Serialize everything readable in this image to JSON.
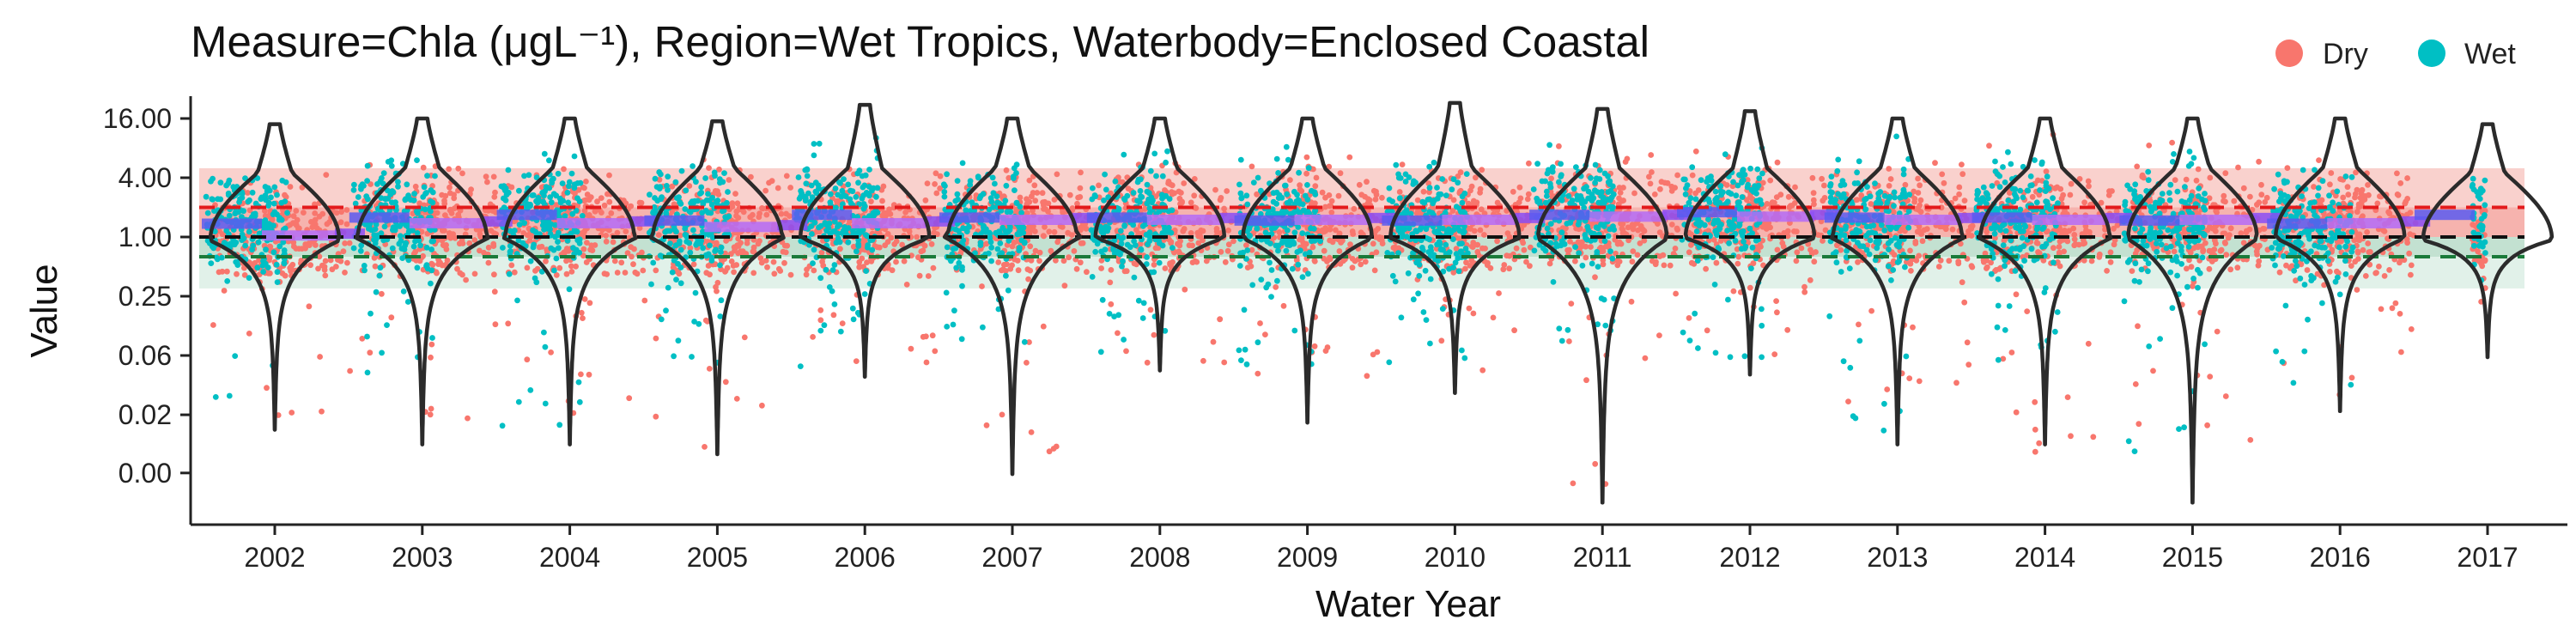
{
  "chart_data": {
    "type": "scatter",
    "subtype": "jittered points with violin overlays and bands, log-scale y axis",
    "title": "Measure=Chla (μgL⁻¹), Region=Wet Tropics, Waterbody=Enclosed Coastal",
    "xlabel": "Water Year",
    "ylabel": "Value",
    "x_scale": "categorical",
    "y_scale": "log2",
    "ylim": [
      0.005,
      30
    ],
    "categories": [
      "2002",
      "2003",
      "2004",
      "2005",
      "2006",
      "2007",
      "2008",
      "2009",
      "2010",
      "2011",
      "2012",
      "2013",
      "2014",
      "2015",
      "2016",
      "2017"
    ],
    "y_ticks": [
      {
        "value": 0.004,
        "label": "0.00"
      },
      {
        "value": 0.0156,
        "label": "0.02"
      },
      {
        "value": 0.0625,
        "label": "0.06"
      },
      {
        "value": 0.25,
        "label": "0.25"
      },
      {
        "value": 1,
        "label": "1.00"
      },
      {
        "value": 4,
        "label": "4.00"
      },
      {
        "value": 16,
        "label": "16.00"
      }
    ],
    "reference_lines": [
      {
        "value": 2.0,
        "color": "#e31a1c",
        "style": "dashed"
      },
      {
        "value": 1.0,
        "color": "#111111",
        "style": "dashed"
      },
      {
        "value": 0.63,
        "color": "#1a7a3a",
        "style": "dashed"
      }
    ],
    "bands": [
      {
        "from": 2.0,
        "to": 5.0,
        "color": "#f8c9c4"
      },
      {
        "from": 1.0,
        "to": 2.0,
        "color": "#f4a6a0"
      },
      {
        "from": 0.63,
        "to": 1.0,
        "color": "#b9dcc9"
      },
      {
        "from": 0.3,
        "to": 0.63,
        "color": "#dcefe5"
      }
    ],
    "legend": {
      "placement": "top-right",
      "entries": [
        {
          "name": "Dry",
          "color": "#f8766d"
        },
        {
          "name": "Wet",
          "color": "#00bfc4"
        }
      ]
    },
    "series": [
      {
        "name": "Dry",
        "color": "#f8766d",
        "median": [
          0.9,
          1.2,
          1.2,
          1.1,
          1.2,
          1.3,
          1.3,
          1.3,
          1.3,
          1.4,
          1.4,
          1.3,
          1.3,
          1.3,
          1.2,
          1.0
        ],
        "q_low": [
          0.4,
          0.4,
          0.4,
          0.4,
          0.4,
          0.45,
          0.45,
          0.45,
          0.45,
          0.5,
          0.5,
          0.45,
          0.45,
          0.45,
          0.4,
          0.5
        ],
        "q_high": [
          7,
          8,
          9,
          9,
          11,
          12,
          11,
          10,
          12,
          12,
          12,
          11,
          11,
          11,
          9,
          2
        ],
        "outlier_low": [
          0.012,
          0.012,
          0.015,
          0.007,
          0.05,
          0.005,
          0.05,
          0.03,
          0.04,
          0.003,
          0.05,
          0.02,
          0.005,
          0.003,
          0.02,
          0.1
        ]
      },
      {
        "name": "Wet",
        "color": "#00bfc4",
        "median": [
          1.3,
          1.5,
          1.6,
          1.4,
          1.6,
          1.5,
          1.5,
          1.4,
          1.4,
          1.6,
          1.7,
          1.5,
          1.5,
          1.4,
          1.3,
          1.6
        ],
        "q_low": [
          0.5,
          0.3,
          0.3,
          0.3,
          0.3,
          0.3,
          0.3,
          0.3,
          0.3,
          0.3,
          0.3,
          0.3,
          0.3,
          0.3,
          0.35,
          0.8
        ],
        "q_high": [
          4,
          13,
          14,
          12,
          13,
          10,
          11,
          10,
          12,
          11,
          11,
          12,
          12,
          12,
          10,
          4
        ],
        "outlier_low": [
          0.02,
          0.04,
          0.01,
          0.05,
          0.04,
          0.05,
          0.05,
          0.05,
          0.05,
          0.05,
          0.06,
          0.01,
          0.05,
          0.006,
          0.03,
          0.3
        ]
      }
    ],
    "violins": [
      {
        "median": 0.95,
        "upper_mode": 4.5,
        "max": 14,
        "min": 0.011
      },
      {
        "median": 1.0,
        "upper_mode": 5.0,
        "max": 16,
        "min": 0.0078
      },
      {
        "median": 1.0,
        "upper_mode": 5.0,
        "max": 16,
        "min": 0.0078
      },
      {
        "median": 1.0,
        "upper_mode": 5.0,
        "max": 15,
        "min": 0.0062
      },
      {
        "median": 1.0,
        "upper_mode": 5.0,
        "max": 22,
        "min": 0.038
      },
      {
        "median": 1.0,
        "upper_mode": 5.0,
        "max": 16,
        "min": 0.0039
      },
      {
        "median": 1.0,
        "upper_mode": 5.0,
        "max": 16,
        "min": 0.044
      },
      {
        "median": 1.0,
        "upper_mode": 5.0,
        "max": 16,
        "min": 0.013
      },
      {
        "median": 1.0,
        "upper_mode": 5.0,
        "max": 23,
        "min": 0.026
      },
      {
        "median": 1.0,
        "upper_mode": 5.0,
        "max": 20,
        "min": 0.002
      },
      {
        "median": 1.0,
        "upper_mode": 5.0,
        "max": 19,
        "min": 0.04
      },
      {
        "median": 1.0,
        "upper_mode": 5.0,
        "max": 16,
        "min": 0.0078
      },
      {
        "median": 1.0,
        "upper_mode": 5.0,
        "max": 16,
        "min": 0.0078
      },
      {
        "median": 1.0,
        "upper_mode": 5.0,
        "max": 16,
        "min": 0.002
      },
      {
        "median": 1.0,
        "upper_mode": 5.0,
        "max": 16,
        "min": 0.017
      },
      {
        "median": 0.95,
        "upper_mode": 4.5,
        "max": 14,
        "min": 0.06
      }
    ]
  }
}
